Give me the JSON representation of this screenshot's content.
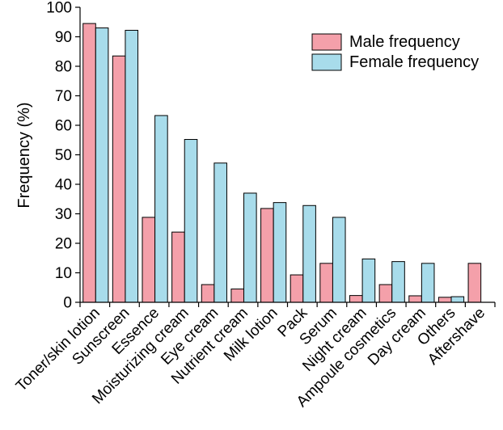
{
  "chart_data": {
    "type": "bar",
    "title": "",
    "xlabel": "",
    "ylabel": "Frequency (%)",
    "ylim": [
      0,
      100
    ],
    "yticks": [
      0,
      10,
      20,
      30,
      40,
      50,
      60,
      70,
      80,
      90,
      100
    ],
    "grid": false,
    "legend_position": "top-right",
    "categories": [
      "Toner/skin lotion",
      "Sunscreen",
      "Essence",
      "Moisturizing cream",
      "Eye cream",
      "Nutrient cream",
      "Milk lotion",
      "Pack",
      "Serum",
      "Night cream",
      "Ampoule cosmetics",
      "Day cream",
      "Others",
      "Aftershave"
    ],
    "series": [
      {
        "name": "Male frequency",
        "color": "#f4a0aa",
        "values": [
          94.5,
          83.5,
          28.8,
          23.8,
          6.0,
          4.5,
          31.8,
          9.3,
          13.2,
          2.3,
          6.0,
          2.2,
          1.7,
          13.2
        ]
      },
      {
        "name": "Female frequency",
        "color": "#a8dceb",
        "values": [
          93.0,
          92.2,
          63.3,
          55.2,
          47.2,
          37.0,
          33.8,
          32.8,
          28.8,
          14.7,
          13.8,
          13.2,
          1.9,
          0
        ]
      }
    ]
  }
}
